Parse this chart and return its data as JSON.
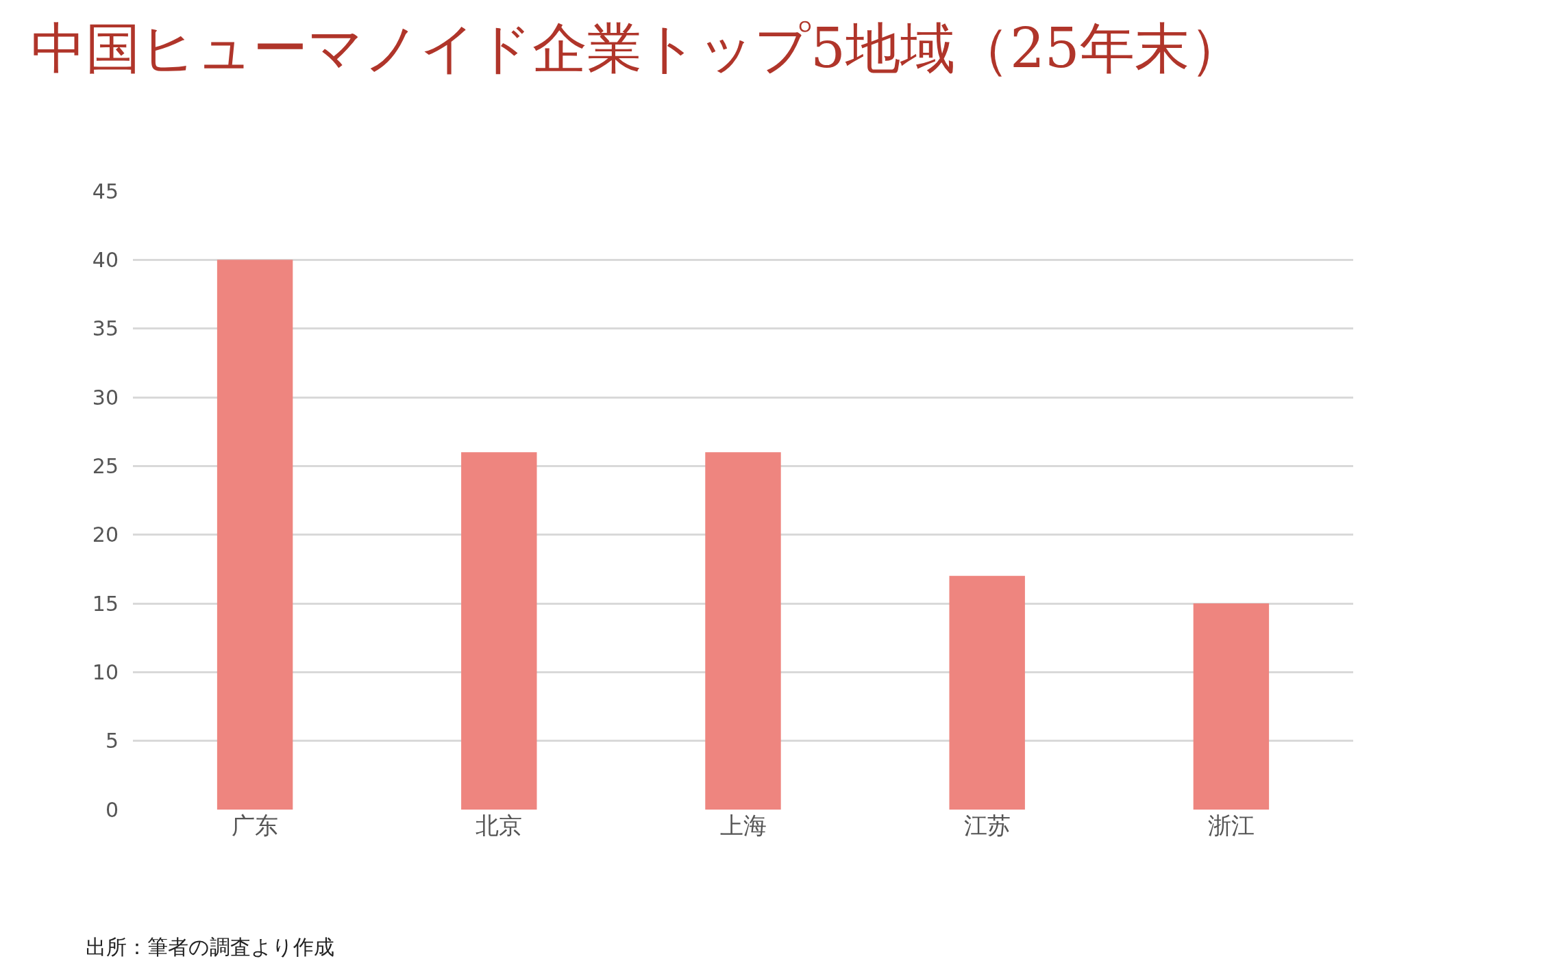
{
  "chart_data": {
    "type": "bar",
    "title": "中国ヒューマノイド企業トップ5地域（25年末）",
    "categories": [
      "广东",
      "北京",
      "上海",
      "江苏",
      "浙江"
    ],
    "values": [
      40,
      26,
      26,
      17,
      15
    ],
    "color": "#ee857f",
    "ylim": [
      0,
      45
    ],
    "yticks": [
      0,
      5,
      10,
      15,
      20,
      25,
      30,
      35,
      40,
      45
    ],
    "grid": "y",
    "annotations": [
      "出所：筆者の調査より作成"
    ]
  }
}
